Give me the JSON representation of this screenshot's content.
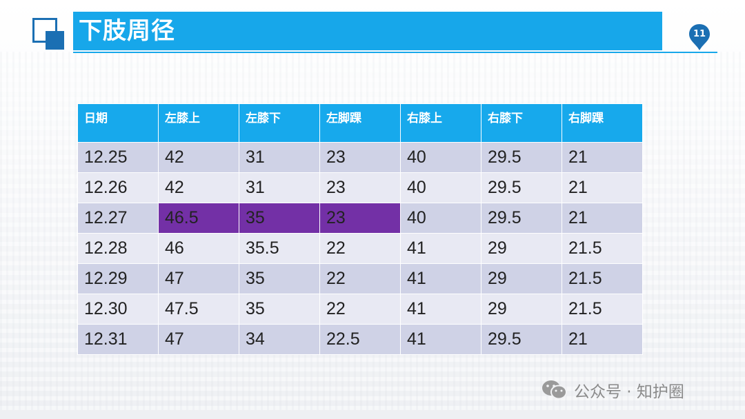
{
  "title": "下肢周径",
  "page_number": "11",
  "table": {
    "headers": [
      "日期",
      "左膝上",
      "左膝下",
      "左脚踝",
      "右膝上",
      "右膝下",
      "右脚踝"
    ],
    "rows": [
      [
        "12.25",
        "42",
        "31",
        "23",
        "40",
        "29.5",
        "21"
      ],
      [
        "12.26",
        "42",
        "31",
        "23",
        "40",
        "29.5",
        "21"
      ],
      [
        "12.27",
        "46.5",
        "35",
        "23",
        "40",
        "29.5",
        "21"
      ],
      [
        "12.28",
        "46",
        "35.5",
        "22",
        "41",
        "29",
        "21.5"
      ],
      [
        "12.29",
        "47",
        "35",
        "22",
        "41",
        "29",
        "21.5"
      ],
      [
        "12.30",
        "47.5",
        "35",
        "22",
        "41",
        "29",
        "21.5"
      ],
      [
        "12.31",
        "47",
        "34",
        "22.5",
        "41",
        "29.5",
        "21"
      ]
    ],
    "highlighted_cells": [
      "2.1",
      "2.2",
      "2.3"
    ]
  },
  "watermark": {
    "icon": "wechat-icon",
    "text": "公众号 · 知护圈"
  },
  "colors": {
    "accent": "#17a7ea",
    "logo": "#1b6fb3",
    "highlight": "#7330a6"
  }
}
